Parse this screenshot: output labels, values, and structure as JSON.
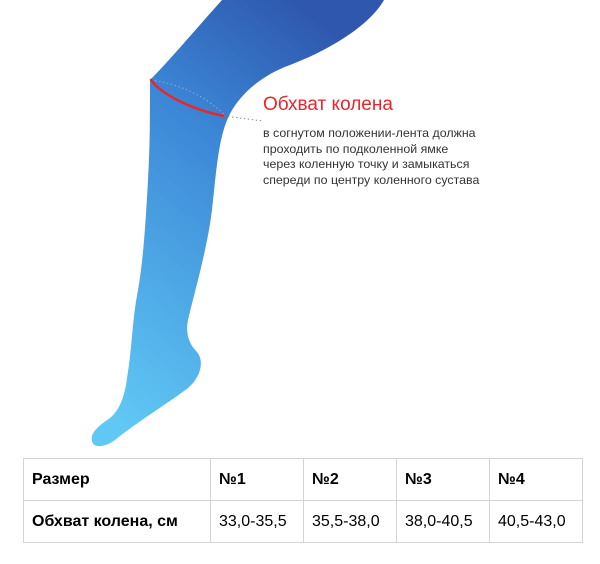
{
  "callout": {
    "title": "Обхват колена",
    "lines": [
      "в согнутом положении-лента должна",
      "проходить по подколенной ямке",
      "через коленную точку и замыкаться",
      "спереди по центру коленного сустава"
    ]
  },
  "colors": {
    "leg_top": "#2f5fb3",
    "leg_mid": "#3e8fdc",
    "leg_bottom": "#5fc4f2",
    "measure_line": "#e8262b",
    "title": "#e8262b"
  },
  "table": {
    "header": [
      "Размер",
      "№1",
      "№2",
      "№3",
      "№4"
    ],
    "row": [
      "Обхват колена, см",
      "33,0-35,5",
      "35,5-38,0",
      "38,0-40,5",
      "40,5-43,0"
    ]
  }
}
